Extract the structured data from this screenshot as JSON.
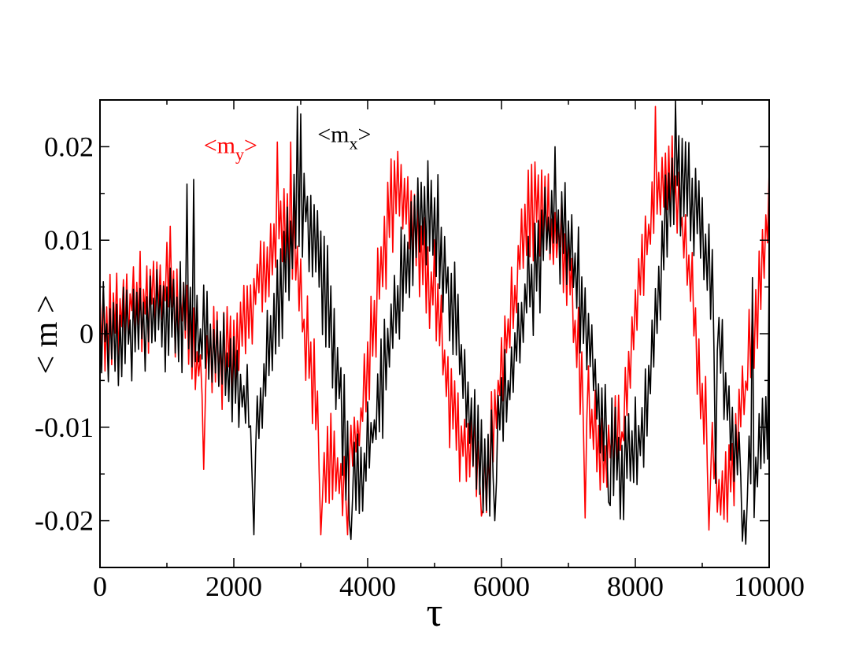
{
  "chart_data": {
    "type": "line",
    "title": "",
    "xlabel": "τ",
    "ylabel": "< m >",
    "xlim": [
      0,
      10000
    ],
    "ylim": [
      -0.025,
      0.025
    ],
    "xticks": [
      0,
      2000,
      4000,
      6000,
      8000,
      10000
    ],
    "xtick_labels": [
      "0",
      "2000",
      "4000",
      "6000",
      "8000",
      "10000"
    ],
    "yticks": [
      -0.02,
      -0.01,
      0,
      0.01,
      0.02
    ],
    "ytick_labels": [
      "-0.02",
      "-0.01",
      "0",
      "0.01",
      "0.02"
    ],
    "grid": false,
    "annotations": [
      {
        "series": "my",
        "base": "<m",
        "sub": "y",
        "tail": ">",
        "color": "#ff0000",
        "at": [
          1550,
          0.0193
        ]
      },
      {
        "series": "mx",
        "base": "<m",
        "sub": "x",
        "tail": ">",
        "color": "#000000",
        "at": [
          3250,
          0.0205
        ]
      }
    ],
    "series": [
      {
        "name": "mx",
        "color": "#000000",
        "x0": 0,
        "dx": 25,
        "base": [
          [
            0,
            0
          ],
          [
            500,
            0.001
          ],
          [
            1000,
            0.003
          ],
          [
            1500,
            0.0005
          ],
          [
            2000,
            -0.004
          ],
          [
            2300,
            -0.011
          ],
          [
            2600,
            0
          ],
          [
            2900,
            0.012
          ],
          [
            3100,
            0.013
          ],
          [
            3400,
            0.004
          ],
          [
            3700,
            -0.014
          ],
          [
            3900,
            -0.016
          ],
          [
            4200,
            -0.006
          ],
          [
            4500,
            0.006
          ],
          [
            4800,
            0.012
          ],
          [
            5000,
            0.012
          ],
          [
            5300,
            0.003
          ],
          [
            5600,
            -0.011
          ],
          [
            5800,
            -0.015
          ],
          [
            6100,
            -0.005
          ],
          [
            6400,
            0.005
          ],
          [
            6700,
            0.011
          ],
          [
            6900,
            0.012
          ],
          [
            7200,
            0.003
          ],
          [
            7500,
            -0.01
          ],
          [
            7800,
            -0.014
          ],
          [
            8100,
            -0.012
          ],
          [
            8400,
            0.008
          ],
          [
            8600,
            0.017
          ],
          [
            8900,
            0.014
          ],
          [
            9200,
            0.002
          ],
          [
            9500,
            -0.013
          ],
          [
            9750,
            -0.016
          ],
          [
            10000,
            -0.008
          ]
        ],
        "spikes": [
          [
            1300,
            0.016
          ],
          [
            1400,
            0.0165
          ],
          [
            2300,
            -0.0215
          ],
          [
            2950,
            0.0243
          ],
          [
            3000,
            0.0235
          ],
          [
            3750,
            -0.022
          ],
          [
            4900,
            0.0185
          ],
          [
            5900,
            -0.02
          ],
          [
            6800,
            0.02
          ],
          [
            7600,
            -0.018
          ],
          [
            8600,
            0.025
          ],
          [
            9200,
            -0.016
          ],
          [
            9600,
            -0.0222
          ],
          [
            9650,
            -0.0225
          ],
          [
            9750,
            0.006
          ],
          [
            10000,
            0.007
          ]
        ],
        "amp": 0.0055,
        "seed": 11
      },
      {
        "name": "my",
        "color": "#ff0000",
        "x0": 0,
        "dx": 25,
        "base": [
          [
            0,
            0.001
          ],
          [
            500,
            0.003
          ],
          [
            1000,
            0.004
          ],
          [
            1200,
            0.003
          ],
          [
            1500,
            -0.003
          ],
          [
            2000,
            -0.002
          ],
          [
            2300,
            0.004
          ],
          [
            2600,
            0.01
          ],
          [
            2800,
            0.012
          ],
          [
            3000,
            0.004
          ],
          [
            3300,
            -0.012
          ],
          [
            3600,
            -0.016
          ],
          [
            3900,
            -0.009
          ],
          [
            4200,
            0.007
          ],
          [
            4400,
            0.016
          ],
          [
            4600,
            0.014
          ],
          [
            4800,
            0.008
          ],
          [
            5000,
            0.0045
          ],
          [
            5200,
            -0.006
          ],
          [
            5500,
            -0.013
          ],
          [
            5800,
            -0.014
          ],
          [
            6000,
            -0.004
          ],
          [
            6300,
            0.009
          ],
          [
            6500,
            0.014
          ],
          [
            6800,
            0.012
          ],
          [
            7000,
            0.007
          ],
          [
            7200,
            -0.005
          ],
          [
            7500,
            -0.013
          ],
          [
            7800,
            -0.011
          ],
          [
            8100,
            0.008
          ],
          [
            8400,
            0.017
          ],
          [
            8600,
            0.016
          ],
          [
            8800,
            0.007
          ],
          [
            9000,
            -0.008
          ],
          [
            9300,
            -0.018
          ],
          [
            9500,
            -0.012
          ],
          [
            9800,
            0.0005
          ],
          [
            10000,
            0.015
          ]
        ],
        "spikes": [
          [
            1050,
            0.0115
          ],
          [
            1550,
            -0.0145
          ],
          [
            2650,
            0.0205
          ],
          [
            2850,
            0.0205
          ],
          [
            3300,
            -0.0215
          ],
          [
            3700,
            -0.0215
          ],
          [
            4400,
            0.0185
          ],
          [
            5700,
            -0.0195
          ],
          [
            6600,
            0.0175
          ],
          [
            7250,
            -0.0197
          ],
          [
            8300,
            0.0243
          ],
          [
            9100,
            -0.021
          ],
          [
            10000,
            0.0175
          ]
        ],
        "amp": 0.005,
        "seed": 29
      }
    ]
  }
}
